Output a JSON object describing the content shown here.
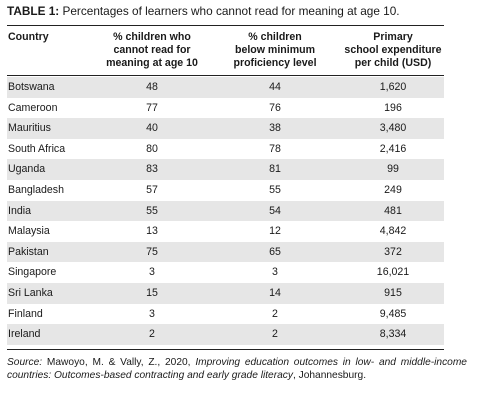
{
  "title": {
    "label": "TABLE 1:",
    "text": "Percentages of learners who cannot read for meaning at age 10."
  },
  "headers": {
    "country": "Country",
    "col1": [
      "% children who",
      "cannot read for",
      "meaning at age 10"
    ],
    "col2": [
      "% children",
      "below minimum",
      "proficiency level"
    ],
    "col3": [
      "Primary",
      "school expenditure",
      "per child (USD)"
    ]
  },
  "rows": [
    {
      "country": "Botswana",
      "cannot_read": "48",
      "below_min": "44",
      "expenditure": "1,620"
    },
    {
      "country": "Cameroon",
      "cannot_read": "77",
      "below_min": "76",
      "expenditure": "196"
    },
    {
      "country": "Mauritius",
      "cannot_read": "40",
      "below_min": "38",
      "expenditure": "3,480"
    },
    {
      "country": "South Africa",
      "cannot_read": "80",
      "below_min": "78",
      "expenditure": "2,416"
    },
    {
      "country": "Uganda",
      "cannot_read": "83",
      "below_min": "81",
      "expenditure": "99"
    },
    {
      "country": "Bangladesh",
      "cannot_read": "57",
      "below_min": "55",
      "expenditure": "249"
    },
    {
      "country": "India",
      "cannot_read": "55",
      "below_min": "54",
      "expenditure": "481"
    },
    {
      "country": "Malaysia",
      "cannot_read": "13",
      "below_min": "12",
      "expenditure": "4,842"
    },
    {
      "country": "Pakistan",
      "cannot_read": "75",
      "below_min": "65",
      "expenditure": "372"
    },
    {
      "country": "Singapore",
      "cannot_read": "3",
      "below_min": "3",
      "expenditure": "16,021"
    },
    {
      "country": "Sri Lanka",
      "cannot_read": "15",
      "below_min": "14",
      "expenditure": "915"
    },
    {
      "country": "Finland",
      "cannot_read": "3",
      "below_min": "2",
      "expenditure": "9,485"
    },
    {
      "country": "Ireland",
      "cannot_read": "2",
      "below_min": "2",
      "expenditure": "8,334"
    }
  ],
  "source": {
    "label": "Source:",
    "authors": "Mawoyo, M. & Vally, Z., 2020,",
    "work": "Improving education outcomes in low- and middle-income countries: Outcomes-based contracting and early grade literacy",
    "place": ", Johannesburg."
  },
  "colors": {
    "shade": "#e6e6e6",
    "rule": "#222222"
  }
}
